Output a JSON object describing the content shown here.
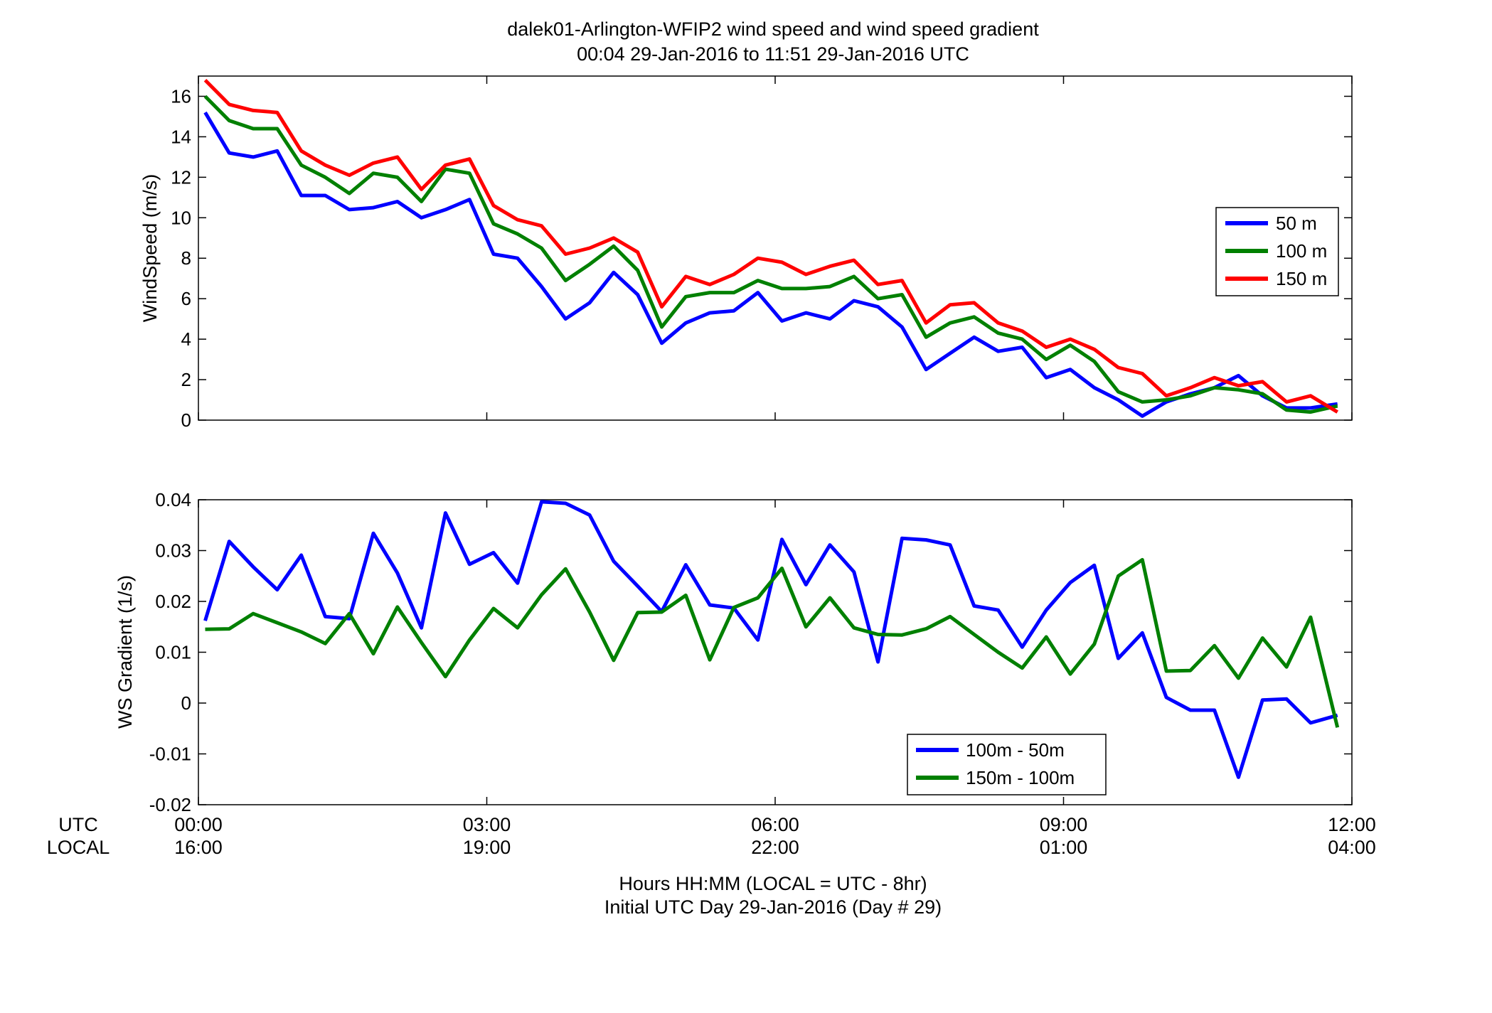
{
  "figure": {
    "title_line1": "dalek01-Arlington-WFIP2  wind speed and wind speed gradient",
    "title_line2": "00:04 29-Jan-2016 to 11:51 29-Jan-2016  UTC",
    "xlabel_line1": "Hours HH:MM  (LOCAL = UTC - 8hr)",
    "xlabel_line2": "Initial UTC Day 29-Jan-2016 (Day # 29)",
    "row_label_utc": "UTC",
    "row_label_local": "LOCAL",
    "xticks_utc": [
      "00:00",
      "03:00",
      "06:00",
      "09:00",
      "12:00"
    ],
    "xticks_local": [
      "16:00",
      "19:00",
      "22:00",
      "01:00",
      "04:00"
    ]
  },
  "chart_data": [
    {
      "type": "line",
      "ylabel": "WindSpeed (m/s)",
      "xlim": [
        0,
        12
      ],
      "ylim": [
        0,
        17
      ],
      "yticks": [
        0,
        2,
        4,
        6,
        8,
        10,
        12,
        14,
        16
      ],
      "ytick_labels": [
        "0",
        "2",
        "4",
        "6",
        "8",
        "10",
        "12",
        "14",
        "16"
      ],
      "legend_position": "right",
      "x": [
        0.07,
        0.32,
        0.57,
        0.82,
        1.07,
        1.32,
        1.57,
        1.82,
        2.07,
        2.32,
        2.57,
        2.82,
        3.07,
        3.32,
        3.57,
        3.82,
        4.07,
        4.32,
        4.57,
        4.82,
        5.07,
        5.32,
        5.57,
        5.82,
        6.07,
        6.32,
        6.57,
        6.82,
        7.07,
        7.32,
        7.57,
        7.82,
        8.07,
        8.32,
        8.57,
        8.82,
        9.07,
        9.32,
        9.57,
        9.82,
        10.07,
        10.32,
        10.57,
        10.82,
        11.07,
        11.32,
        11.57,
        11.85
      ],
      "series": [
        {
          "name": "50 m",
          "color": "#0000ff",
          "values": [
            15.2,
            13.2,
            13.0,
            13.3,
            11.1,
            11.1,
            10.4,
            10.5,
            10.8,
            10.0,
            10.4,
            10.9,
            8.2,
            8.0,
            6.6,
            5.0,
            5.8,
            7.3,
            6.2,
            3.8,
            4.8,
            5.3,
            5.4,
            6.3,
            4.9,
            5.3,
            5.0,
            5.9,
            5.6,
            4.6,
            2.5,
            3.3,
            4.1,
            3.4,
            3.6,
            2.1,
            2.5,
            1.6,
            1.0,
            0.2,
            0.9,
            1.3,
            1.6,
            2.2,
            1.2,
            0.6,
            0.6,
            0.8
          ]
        },
        {
          "name": "100 m",
          "color": "#008000",
          "values": [
            16.0,
            14.8,
            14.4,
            14.4,
            12.6,
            12.0,
            11.2,
            12.2,
            12.0,
            10.8,
            12.4,
            12.2,
            9.7,
            9.2,
            8.5,
            6.9,
            7.7,
            8.6,
            7.4,
            4.6,
            6.1,
            6.3,
            6.3,
            6.9,
            6.5,
            6.5,
            6.6,
            7.1,
            6.0,
            6.2,
            4.1,
            4.8,
            5.1,
            4.3,
            4.0,
            3.0,
            3.7,
            2.9,
            1.4,
            0.9,
            1.0,
            1.2,
            1.6,
            1.5,
            1.3,
            0.5,
            0.4,
            0.7
          ]
        },
        {
          "name": "150 m",
          "color": "#ff0000",
          "values": [
            16.8,
            15.6,
            15.3,
            15.2,
            13.3,
            12.6,
            12.1,
            12.7,
            13.0,
            11.4,
            12.6,
            12.9,
            10.6,
            9.9,
            9.6,
            8.2,
            8.5,
            9.0,
            8.3,
            5.6,
            7.1,
            6.7,
            7.2,
            8.0,
            7.8,
            7.2,
            7.6,
            7.9,
            6.7,
            6.9,
            4.8,
            5.7,
            5.8,
            4.8,
            4.4,
            3.6,
            4.0,
            3.5,
            2.6,
            2.3,
            1.2,
            1.6,
            2.1,
            1.7,
            1.9,
            0.9,
            1.2,
            0.4
          ]
        }
      ]
    },
    {
      "type": "line",
      "ylabel": "WS Gradient (1/s)",
      "xlim": [
        0,
        12
      ],
      "ylim": [
        -0.02,
        0.04
      ],
      "yticks": [
        -0.02,
        -0.01,
        0,
        0.01,
        0.02,
        0.03,
        0.04
      ],
      "ytick_labels": [
        "-0.02",
        "-0.01",
        "0",
        "0.01",
        "0.02",
        "0.03",
        "0.04"
      ],
      "legend_position": "bottom-right",
      "x": [
        0.07,
        0.32,
        0.57,
        0.82,
        1.07,
        1.32,
        1.57,
        1.82,
        2.07,
        2.32,
        2.57,
        2.82,
        3.07,
        3.32,
        3.57,
        3.82,
        4.07,
        4.32,
        4.57,
        4.82,
        5.07,
        5.32,
        5.57,
        5.82,
        6.07,
        6.32,
        6.57,
        6.82,
        7.07,
        7.32,
        7.57,
        7.82,
        8.07,
        8.32,
        8.57,
        8.82,
        9.07,
        9.32,
        9.57,
        9.82,
        10.07,
        10.32,
        10.57,
        10.82,
        11.07,
        11.32,
        11.57,
        11.85
      ],
      "series": [
        {
          "name": "100m - 50m",
          "color": "#0000ff",
          "values": [
            0.0162,
            0.0318,
            0.0268,
            0.0223,
            0.0291,
            0.017,
            0.0166,
            0.0334,
            0.0256,
            0.0148,
            0.0374,
            0.0273,
            0.0296,
            0.0236,
            0.0396,
            0.0393,
            0.037,
            0.0279,
            0.023,
            0.018,
            0.0272,
            0.0193,
            0.0187,
            0.0124,
            0.0322,
            0.0233,
            0.0311,
            0.0258,
            0.0081,
            0.0324,
            0.0321,
            0.0311,
            0.0191,
            0.0183,
            0.011,
            0.0183,
            0.0237,
            0.0271,
            0.0088,
            0.0138,
            0.0011,
            -0.0014,
            -0.0014,
            -0.0146,
            0.0006,
            0.0008,
            -0.0039,
            -0.0024
          ]
        },
        {
          "name": "150m - 100m",
          "color": "#008000",
          "values": [
            0.0145,
            0.0146,
            0.0176,
            0.0158,
            0.014,
            0.0117,
            0.0176,
            0.0097,
            0.0189,
            0.0119,
            0.0052,
            0.0124,
            0.0186,
            0.0148,
            0.0213,
            0.0264,
            0.0179,
            0.0084,
            0.0178,
            0.0179,
            0.0212,
            0.0085,
            0.0188,
            0.0207,
            0.0265,
            0.015,
            0.0207,
            0.0148,
            0.0135,
            0.0134,
            0.0146,
            0.017,
            0.0135,
            0.01,
            0.0069,
            0.013,
            0.0057,
            0.0116,
            0.025,
            0.0282,
            0.0063,
            0.0064,
            0.0113,
            0.0049,
            0.0128,
            0.0071,
            0.0169,
            -0.0048
          ]
        }
      ]
    }
  ]
}
